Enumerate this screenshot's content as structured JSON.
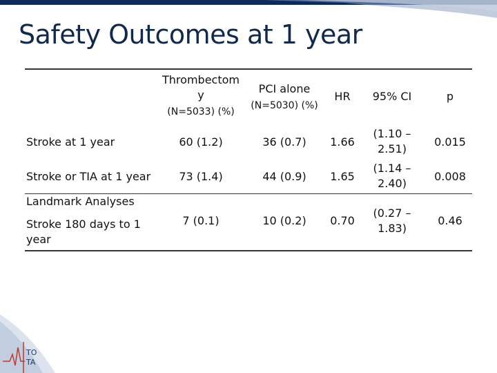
{
  "slide": {
    "title": "Safety Outcomes at 1 year"
  },
  "table": {
    "header": {
      "thrombectomy_line1": "Thrombectom",
      "thrombectomy_line2": "y",
      "thrombectomy_n": "(N=5033) (%)",
      "pci_alone": "PCI alone",
      "pci_n": "(N=5030) (%)",
      "hr": "HR",
      "ci": "95% CI",
      "p": "p"
    },
    "rows": [
      {
        "label": "Stroke at 1 year",
        "thrombectomy": "60 (1.2)",
        "pci": "36 (0.7)",
        "hr": "1.66",
        "ci_line1": "(1.10 –",
        "ci_line2": "2.51)",
        "p": "0.015"
      },
      {
        "label": "Stroke or TIA at 1 year",
        "thrombectomy": "73 (1.4)",
        "pci": "44 (0.9)",
        "hr": "1.65",
        "ci_line1": "(1.14 –",
        "ci_line2": "2.40)",
        "p": "0.008"
      }
    ],
    "section_label": "Landmark Analyses",
    "landmark_row": {
      "label_line1": "Stroke 180 days to 1",
      "label_line2": "year",
      "thrombectomy": "7 (0.1)",
      "pci": "10 (0.2)",
      "hr": "0.70",
      "ci_line1": "(0.27 –",
      "ci_line2": "1.83)",
      "p": "0.46"
    }
  },
  "logo": {
    "text_line1": "TO",
    "text_line2": "TA",
    "icon": "ecg-logo-icon"
  },
  "colors": {
    "title": "#12294f",
    "brand_bar": "#0d2a5c"
  }
}
